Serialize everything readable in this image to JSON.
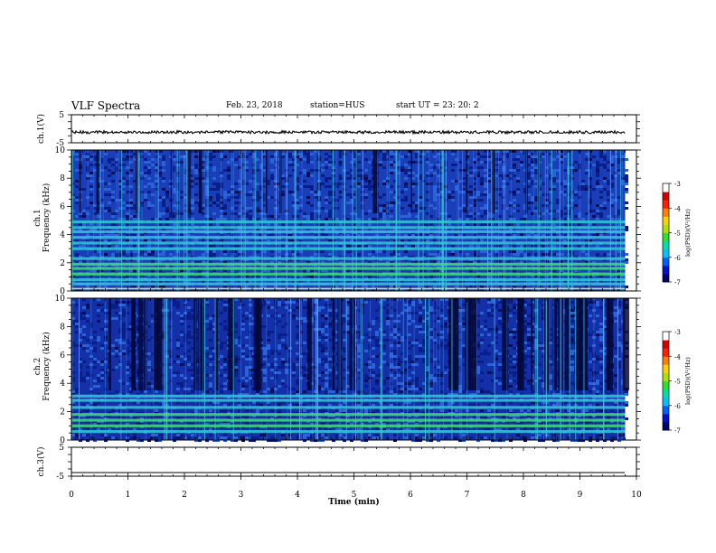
{
  "header": {
    "title": "VLF Spectra",
    "date": "Feb. 23, 2018",
    "station": "station=HUS",
    "start": "start  UT =   23: 20: 2"
  },
  "chart_data": [
    {
      "type": "line",
      "panel": "ch1-waveform",
      "ylabel": "ch.1(V)",
      "ylim": [
        -5,
        5
      ],
      "yticks": [
        "5",
        "-5"
      ],
      "xlim": [
        0,
        10
      ],
      "series": [
        {
          "values_summary": "noisy trace near -2.5 V from 0 to 9.8 min"
        }
      ]
    },
    {
      "type": "heatmap",
      "panel": "ch1-spectrogram",
      "ylabel": "ch.1\nFrequency (kHz)",
      "ylim": [
        0,
        10
      ],
      "yticks": [
        "0",
        "2",
        "4",
        "6",
        "8",
        "10"
      ],
      "xlim": [
        0,
        10
      ],
      "data_extent_min": 9.8,
      "colorbar": {
        "label": "log(PSD)(V²/Hz)",
        "range": [
          -7,
          -3
        ],
        "ticks": [
          "-3",
          "-4",
          "-5",
          "-6",
          "-7"
        ]
      },
      "bands_khz": [
        0.5,
        0.8,
        1.2,
        1.6,
        1.9,
        2.3,
        3.0,
        3.4,
        3.8,
        4.2,
        4.5,
        4.9
      ]
    },
    {
      "type": "heatmap",
      "panel": "ch2-spectrogram",
      "ylabel": "ch.2\nFrequency (kHz)",
      "ylim": [
        0,
        10
      ],
      "yticks": [
        "0",
        "2",
        "4",
        "6",
        "8",
        "10"
      ],
      "xlim": [
        0,
        10
      ],
      "data_extent_min": 9.8,
      "colorbar": {
        "label": "log(PSD)(V²/Hz)",
        "range": [
          -7,
          -3
        ],
        "ticks": [
          "-3",
          "-4",
          "-5",
          "-6",
          "-7"
        ]
      },
      "bands_khz": [
        0.6,
        1.0,
        1.4,
        1.8,
        2.3,
        2.8,
        3.1
      ]
    },
    {
      "type": "line",
      "panel": "ch3-waveform",
      "ylabel": "ch.3(V)",
      "ylim": [
        -5,
        5
      ],
      "yticks": [
        "5",
        "-5"
      ],
      "xlim": [
        0,
        10
      ],
      "xlabel": "Time  (min)",
      "xticks": [
        "0",
        "1",
        "2",
        "3",
        "4",
        "5",
        "6",
        "7",
        "8",
        "9",
        "10"
      ],
      "series": [
        {
          "values_summary": "flat line near -2.5 V from 0 to 9.8 min"
        }
      ]
    }
  ]
}
